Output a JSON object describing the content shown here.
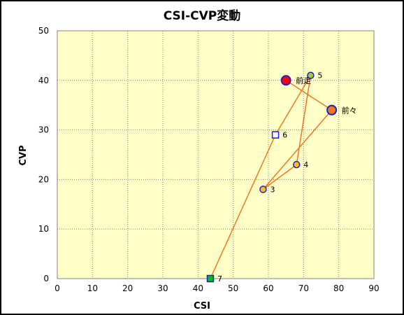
{
  "chart_data": {
    "type": "scatter",
    "title": "CSI-CVP変動",
    "xlabel": "CSI",
    "ylabel": "CVP",
    "xlim": [
      0,
      90
    ],
    "ylim": [
      0,
      50
    ],
    "xticks": [
      0,
      10,
      20,
      30,
      40,
      50,
      60,
      70,
      80,
      90
    ],
    "yticks": [
      0,
      10,
      20,
      30,
      40,
      50
    ],
    "grid": true,
    "legend": "none",
    "plot_background": "#FFFFC8",
    "line_color": "#F07820",
    "points": [
      {
        "label": "前々",
        "x": 78,
        "y": 34,
        "marker": "circle",
        "fill": "#F07820",
        "stroke": "#1E1EC8",
        "size": "large"
      },
      {
        "label": "前走",
        "x": 65,
        "y": 40,
        "marker": "circle",
        "fill": "#FF0000",
        "stroke": "#1E1EC8",
        "size": "large"
      },
      {
        "label": "3",
        "x": 58.5,
        "y": 18,
        "marker": "circle",
        "fill": "#FFC000",
        "stroke": "#1E1EC8",
        "size": "small"
      },
      {
        "label": "4",
        "x": 68,
        "y": 23,
        "marker": "circle",
        "fill": "#FFC000",
        "stroke": "#1E1EC8",
        "size": "small"
      },
      {
        "label": "5",
        "x": 72,
        "y": 41,
        "marker": "circle",
        "fill": "#9ACD32",
        "stroke": "#1E1EC8",
        "size": "small"
      },
      {
        "label": "6",
        "x": 62,
        "y": 29,
        "marker": "square",
        "fill": "#FFFFFF",
        "stroke": "#1E1EC8",
        "size": "small"
      },
      {
        "label": "7",
        "x": 43.5,
        "y": 0,
        "marker": "square",
        "fill": "#00C000",
        "stroke": "#1E1EC8",
        "size": "small"
      }
    ],
    "path_order": [
      "7",
      "6",
      "5",
      "4",
      "3",
      "前々",
      "前走"
    ]
  }
}
